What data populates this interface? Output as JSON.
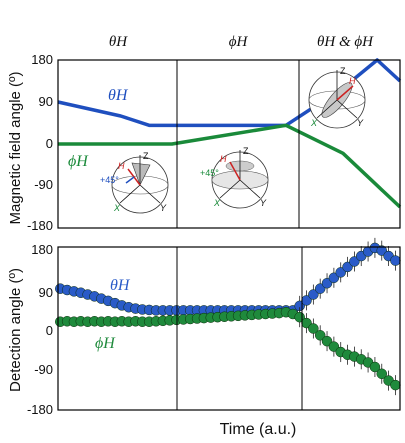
{
  "chart_data": [
    {
      "type": "line",
      "panel": "top",
      "ylabel": "Magnetic field angle (º)",
      "yticks": [
        "180",
        "90",
        "0",
        "-90",
        "-180"
      ],
      "ylim": [
        -180,
        180
      ],
      "segment_labels": [
        "θH",
        "ϕH",
        "θH & ϕH"
      ],
      "x_domain": [
        0,
        3
      ],
      "series": [
        {
          "name": "θH",
          "color": "#1f4fbf",
          "x": [
            0,
            0.55,
            0.8,
            1.0,
            2.0,
            2.5,
            2.8,
            3.0
          ],
          "y": [
            90,
            60,
            40,
            40,
            40,
            120,
            180,
            135
          ]
        },
        {
          "name": "ϕH",
          "color": "#1a8a3a",
          "x": [
            0,
            0.8,
            1.0,
            2.0,
            2.5,
            3.0
          ],
          "y": [
            0,
            0,
            0,
            40,
            -20,
            -135
          ]
        }
      ],
      "insets": [
        {
          "labels": [
            "Z",
            "H",
            "+45°",
            "X",
            "Y"
          ]
        },
        {
          "labels": [
            "Z",
            "H",
            "+45°",
            "X",
            "Y"
          ]
        },
        {
          "labels": [
            "Z",
            "H",
            "X",
            "Y"
          ]
        }
      ]
    },
    {
      "type": "scatter",
      "panel": "bottom",
      "ylabel": "Detection angle (º)",
      "xlabel": "Time (a.u.)",
      "yticks": [
        "180",
        "90",
        "0",
        "-90",
        "-180"
      ],
      "ylim": [
        -180,
        180
      ],
      "x_domain": [
        0,
        3
      ],
      "series": [
        {
          "name": "θH",
          "color": "#2a5bc8",
          "x": [
            0.02,
            0.08,
            0.14,
            0.2,
            0.26,
            0.32,
            0.38,
            0.44,
            0.5,
            0.56,
            0.62,
            0.68,
            0.74,
            0.8,
            0.86,
            0.92,
            0.98,
            1.04,
            1.1,
            1.16,
            1.22,
            1.28,
            1.34,
            1.4,
            1.46,
            1.52,
            1.58,
            1.64,
            1.7,
            1.76,
            1.82,
            1.88,
            1.94,
            2.0,
            2.06,
            2.12,
            2.18,
            2.24,
            2.3,
            2.36,
            2.42,
            2.48,
            2.54,
            2.6,
            2.66,
            2.72,
            2.78,
            2.84,
            2.9,
            2.96
          ],
          "y": [
            88,
            85,
            82,
            79,
            75,
            71,
            66,
            61,
            56,
            51,
            47,
            44,
            42,
            41,
            40,
            40,
            40,
            40,
            40,
            40,
            40,
            40,
            40,
            40,
            40,
            40,
            40,
            40,
            40,
            40,
            40,
            40,
            40,
            40,
            40,
            50,
            62,
            75,
            88,
            100,
            112,
            124,
            136,
            148,
            160,
            170,
            178,
            172,
            160,
            150
          ]
        },
        {
          "name": "ϕH",
          "color": "#1f8a3c",
          "x": [
            0.02,
            0.08,
            0.14,
            0.2,
            0.26,
            0.32,
            0.38,
            0.44,
            0.5,
            0.56,
            0.62,
            0.68,
            0.74,
            0.8,
            0.86,
            0.92,
            0.98,
            1.04,
            1.1,
            1.16,
            1.22,
            1.28,
            1.34,
            1.4,
            1.46,
            1.52,
            1.58,
            1.64,
            1.7,
            1.76,
            1.82,
            1.88,
            1.94,
            2.0,
            2.06,
            2.12,
            2.18,
            2.24,
            2.3,
            2.36,
            2.42,
            2.48,
            2.54,
            2.6,
            2.66,
            2.72,
            2.78,
            2.84,
            2.9,
            2.96
          ],
          "y": [
            15,
            16,
            15,
            16,
            15,
            16,
            15,
            16,
            15,
            16,
            15,
            16,
            15,
            15,
            16,
            17,
            18,
            19,
            20,
            21,
            22,
            23,
            24,
            25,
            26,
            27,
            28,
            29,
            30,
            31,
            32,
            33,
            34,
            36,
            32,
            25,
            12,
            0,
            -15,
            -28,
            -40,
            -52,
            -58,
            -62,
            -68,
            -75,
            -85,
            -100,
            -115,
            -125
          ]
        }
      ]
    }
  ]
}
